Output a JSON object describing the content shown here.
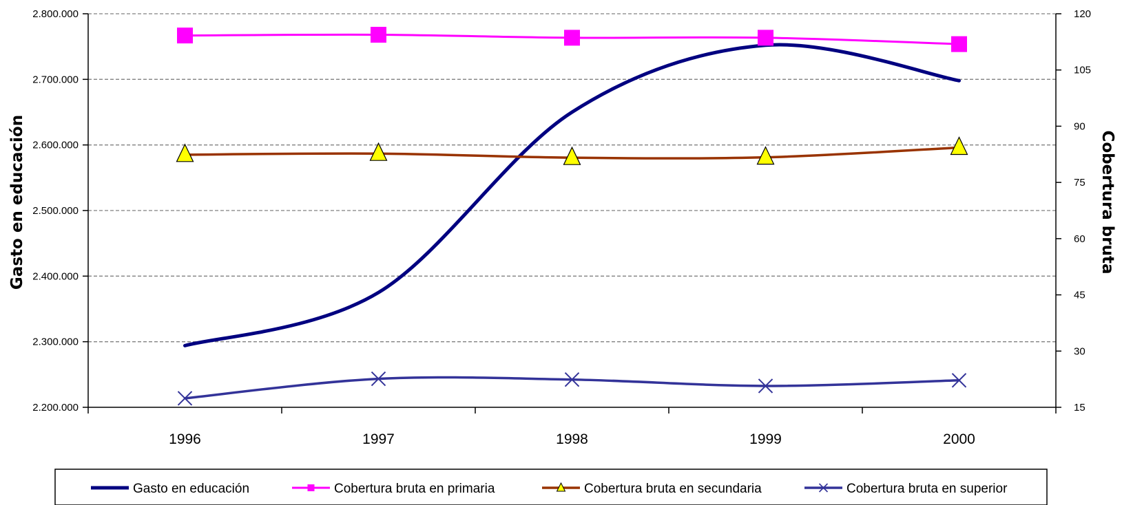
{
  "chart_data": {
    "type": "line",
    "title": "",
    "categories": [
      "1996",
      "1997",
      "1998",
      "1999",
      "2000"
    ],
    "xlabel": "",
    "ylabel_left": "Gasto en educación",
    "ylabel_right": "Cobertura bruta",
    "ylim_left": [
      2200000,
      2800000
    ],
    "ylim_right": [
      15,
      120
    ],
    "yticks_left": [
      "2.200.000",
      "2.300.000",
      "2.400.000",
      "2.500.000",
      "2.600.000",
      "2.700.000",
      "2.800.000"
    ],
    "yticks_right": [
      "15",
      "30",
      "45",
      "60",
      "75",
      "90",
      "105",
      "120"
    ],
    "grid": "horizontal dashed",
    "legend_position": "bottom",
    "series": [
      {
        "name": "Gasto en educación",
        "axis": "left",
        "color": "#000080",
        "marker": "none",
        "values": [
          2294000,
          2375000,
          2650000,
          2752000,
          2698000
        ]
      },
      {
        "name": "Cobertura bruta en primaria",
        "axis": "right",
        "color": "#ff00ff",
        "marker": "square",
        "values": [
          114.2,
          114.4,
          113.6,
          113.6,
          111.9
        ]
      },
      {
        "name": "Cobertura bruta en secundaria",
        "axis": "right",
        "color": "#993300",
        "marker": "triangle",
        "values": [
          82.4,
          82.7,
          81.6,
          81.7,
          84.3
        ]
      },
      {
        "name": "Cobertura bruta en superior",
        "axis": "right",
        "color": "#333399",
        "marker": "x",
        "values": [
          17.4,
          22.6,
          22.4,
          20.7,
          22.2
        ]
      }
    ]
  }
}
